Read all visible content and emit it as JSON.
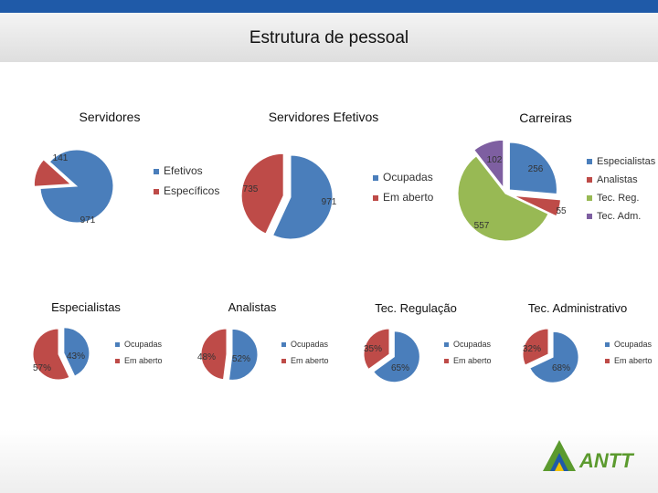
{
  "page_title": "Estrutura de pessoal",
  "brand": {
    "logo_text": "ANTT",
    "colors": {
      "blue": "#1f5aa8",
      "green": "#5b9a2e",
      "yellow": "#f2c300"
    }
  },
  "colors": {
    "blue": "#4a7ebb",
    "red": "#be4b48",
    "green": "#98b954",
    "purple": "#7e5fa1"
  },
  "chart_data": [
    {
      "type": "pie",
      "title": "Servidores",
      "slices": [
        {
          "label": "Efetivos",
          "value": 971,
          "color": "#4a7ebb"
        },
        {
          "label": "Específicos",
          "value": 141,
          "color": "#be4b48"
        }
      ],
      "data_labels": [
        "971",
        "141"
      ],
      "legend": [
        "Efetivos",
        "Específicos"
      ]
    },
    {
      "type": "pie",
      "title": "Servidores Efetivos",
      "slices": [
        {
          "label": "Ocupadas",
          "value": 971,
          "color": "#4a7ebb"
        },
        {
          "label": "Em aberto",
          "value": 735,
          "color": "#be4b48"
        }
      ],
      "data_labels": [
        "971",
        "735"
      ],
      "legend": [
        "Ocupadas",
        "Em aberto"
      ]
    },
    {
      "type": "pie",
      "title": "Carreiras",
      "slices": [
        {
          "label": "Especialistas",
          "value": 256,
          "color": "#4a7ebb"
        },
        {
          "label": "Analistas",
          "value": 55,
          "color": "#be4b48"
        },
        {
          "label": "Tec. Reg.",
          "value": 557,
          "color": "#98b954"
        },
        {
          "label": "Tec. Adm.",
          "value": 102,
          "color": "#7e5fa1"
        }
      ],
      "data_labels": [
        "256",
        "55",
        "557",
        "102"
      ],
      "legend": [
        "Especialistas",
        "Analistas",
        "Tec. Reg.",
        "Tec. Adm."
      ]
    },
    {
      "type": "pie",
      "title": "Especialistas",
      "slices": [
        {
          "label": "Ocupadas",
          "value": 43,
          "color": "#4a7ebb"
        },
        {
          "label": "Em aberto",
          "value": 57,
          "color": "#be4b48"
        }
      ],
      "data_labels": [
        "43%",
        "57%"
      ],
      "legend": [
        "Ocupadas",
        "Em aberto"
      ]
    },
    {
      "type": "pie",
      "title": "Analistas",
      "slices": [
        {
          "label": "Ocupadas",
          "value": 52,
          "color": "#4a7ebb"
        },
        {
          "label": "Em aberto",
          "value": 48,
          "color": "#be4b48"
        }
      ],
      "data_labels": [
        "52%",
        "48%"
      ],
      "legend": [
        "Ocupadas",
        "Em aberto"
      ]
    },
    {
      "type": "pie",
      "title": "Tec. Regulação",
      "slices": [
        {
          "label": "Ocupadas",
          "value": 65,
          "color": "#4a7ebb"
        },
        {
          "label": "Em aberto",
          "value": 35,
          "color": "#be4b48"
        }
      ],
      "data_labels": [
        "65%",
        "35%"
      ],
      "legend": [
        "Ocupadas",
        "Em aberto"
      ]
    },
    {
      "type": "pie",
      "title": "Tec. Administrativo",
      "slices": [
        {
          "label": "Ocupadas",
          "value": 68,
          "color": "#4a7ebb"
        },
        {
          "label": "Em aberto",
          "value": 32,
          "color": "#be4b48"
        }
      ],
      "data_labels": [
        "68%",
        "32%"
      ],
      "legend": [
        "Ocupadas",
        "Em aberto"
      ]
    }
  ]
}
